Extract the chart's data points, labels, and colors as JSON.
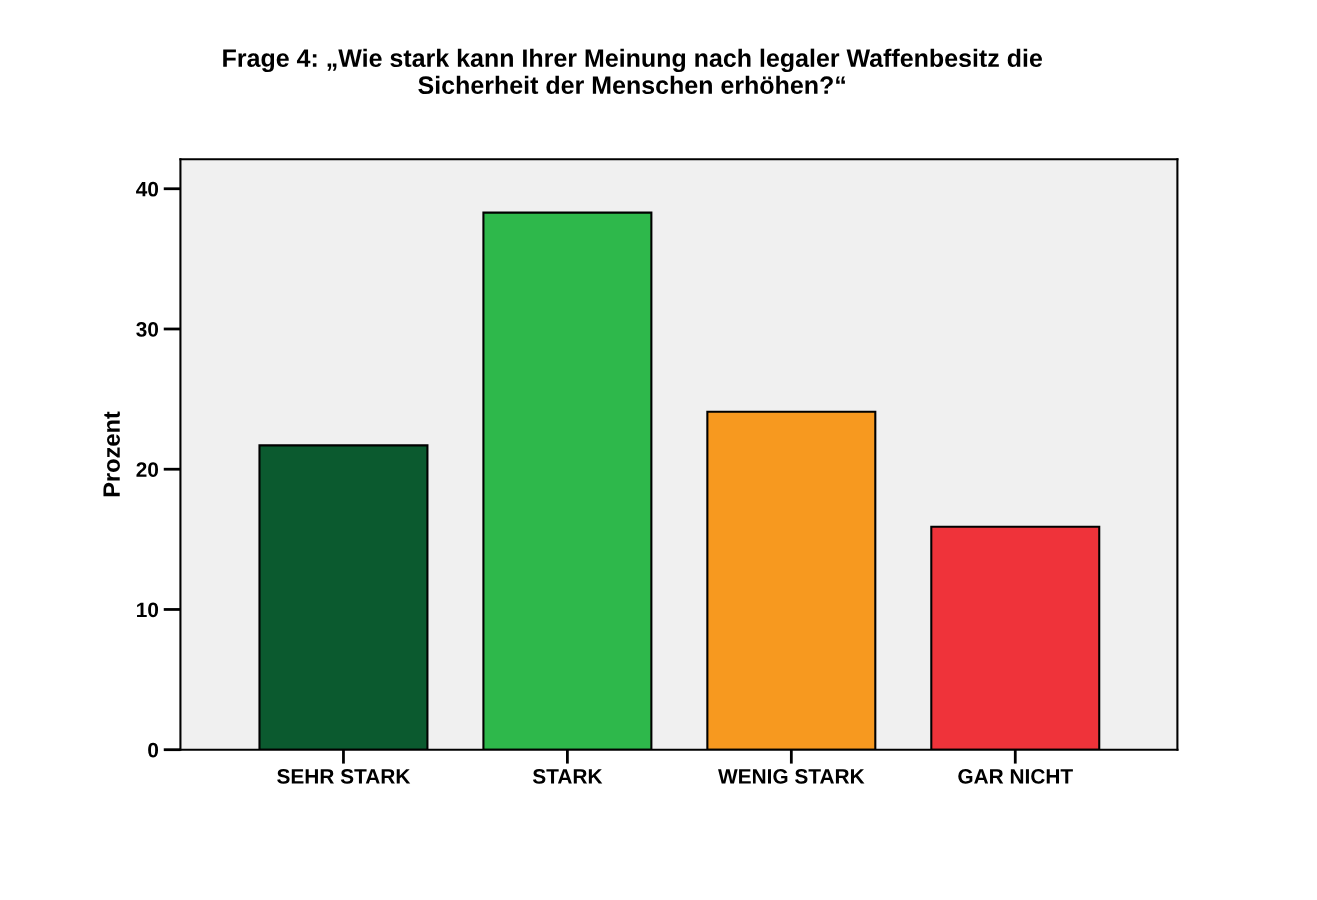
{
  "chart_data": {
    "type": "bar",
    "title": "Frage 4: „Wie stark kann Ihrer Meinung nach legaler Waffenbesitz die\nSicherheit der Menschen erhöhen?“",
    "ylabel": "Prozent",
    "categories": [
      "SEHR STARK",
      "STARK",
      "WENIG STARK",
      "GAR NICHT"
    ],
    "values": [
      21.7,
      38.3,
      24.1,
      15.9
    ],
    "colors": [
      "#0b5a2f",
      "#2eb84b",
      "#f7991f",
      "#ef333a"
    ],
    "ylim": [
      0,
      42.1
    ],
    "yticks": [
      0,
      10,
      20,
      30,
      40
    ],
    "grid": false,
    "legend": false
  }
}
